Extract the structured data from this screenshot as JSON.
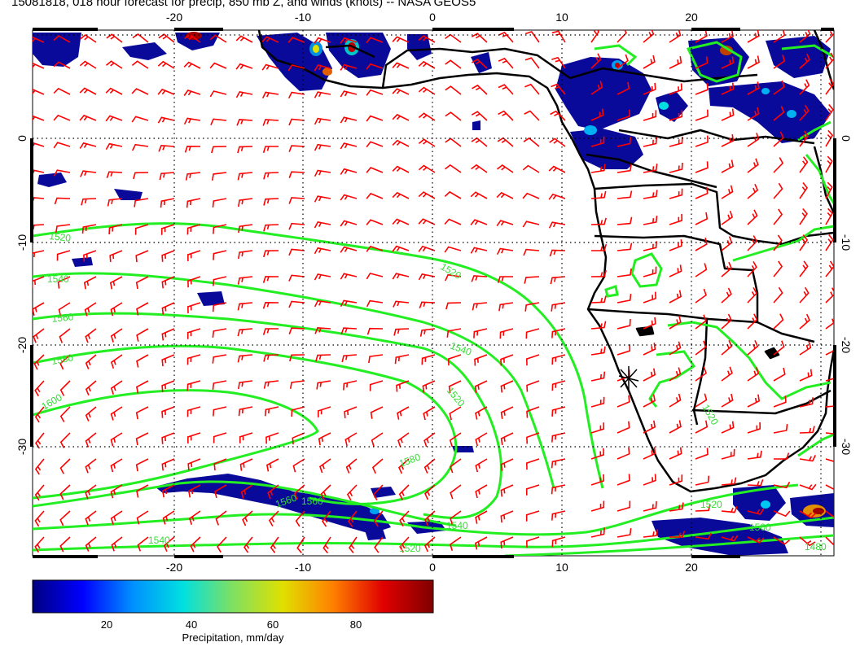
{
  "title": "15081818, 018 hour forecast for precip, 850 mb Z, and winds (knots) -- NASA GEOS5",
  "map": {
    "lon_ticks": [
      "-20",
      "-10",
      "0",
      "10",
      "20"
    ],
    "lat_ticks": [
      "0",
      "-10",
      "-20",
      "-30"
    ],
    "contour_labels": [
      "1520",
      "1540",
      "1560",
      "1580",
      "1600",
      "1520",
      "1540",
      "1520",
      "1560",
      "1580",
      "1560",
      "1540",
      "1520",
      "1540",
      "1520",
      "1520",
      "1500",
      "1480"
    ],
    "colors": {
      "contour": "#22ee22",
      "wind_barb": "#ff0000",
      "precip_low": "#000088",
      "coast": "#000000",
      "grid": "#000000"
    }
  },
  "colorbar": {
    "ticks": [
      "20",
      "40",
      "60",
      "80"
    ],
    "label": "Precipitation, mm/day",
    "stops": [
      "#000080",
      "#0000ff",
      "#0090ff",
      "#00e0e0",
      "#80e060",
      "#e0e000",
      "#ff8000",
      "#e00000",
      "#800000"
    ]
  }
}
